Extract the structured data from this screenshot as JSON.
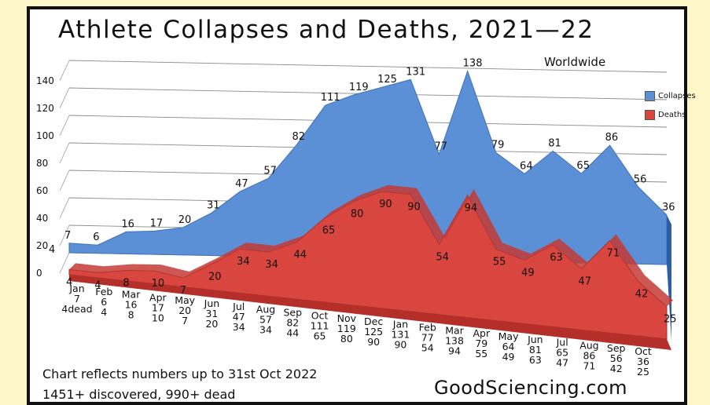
{
  "chart_data": {
    "type": "area",
    "title": "Athlete Collapses and Deaths, 2021—22",
    "subtitle": "Worldwide",
    "categories": [
      "Jan",
      "Feb",
      "Mar",
      "Apr",
      "May",
      "Jun",
      "Jul",
      "Aug",
      "Sep",
      "Oct",
      "Nov",
      "Dec",
      "Jan",
      "Feb",
      "Mar",
      "Apr",
      "May",
      "Jun",
      "Jul",
      "Aug",
      "Sep",
      "Oct"
    ],
    "series": [
      {
        "name": "Collapses",
        "color": "#5b8fd6",
        "values": [
          7,
          6,
          16,
          17,
          20,
          31,
          47,
          57,
          82,
          111,
          119,
          125,
          131,
          77,
          138,
          79,
          64,
          81,
          65,
          86,
          56,
          36
        ]
      },
      {
        "name": "Deaths",
        "color": "#d9453f",
        "values": [
          4,
          4,
          8,
          10,
          7,
          20,
          34,
          34,
          44,
          65,
          80,
          90,
          90,
          54,
          94,
          55,
          49,
          63,
          47,
          71,
          42,
          25
        ]
      }
    ],
    "extra_label": {
      "index": 0,
      "text": "4"
    },
    "deaths_suffix_first": "dead",
    "y_ticks": [
      0,
      20,
      40,
      60,
      80,
      100,
      120,
      140
    ],
    "ylim": [
      0,
      140
    ],
    "grid": true,
    "legend_position": "right"
  },
  "notes": {
    "line1": "Chart reflects numbers up to 31st Oct 2022",
    "line2": "1451+ discovered, 990+ dead"
  },
  "brand": "GoodSciencing.com"
}
